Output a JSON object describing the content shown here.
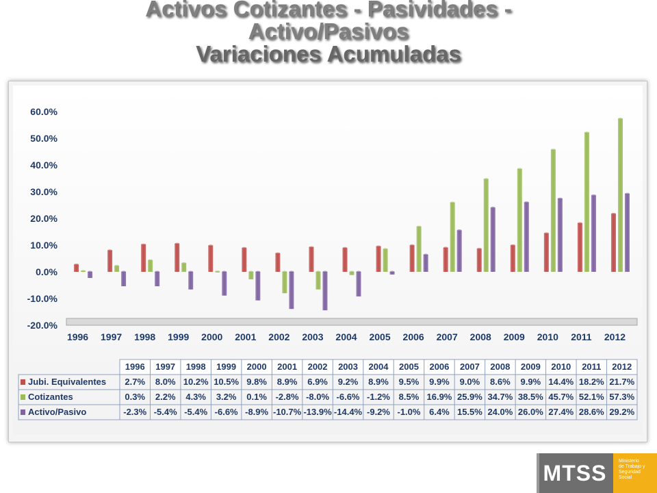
{
  "title": {
    "line1": "Activos Cotizantes - Pasividades -",
    "line2": "Activo/Pasivos",
    "line3": "Variaciones Acumuladas"
  },
  "chart_data": {
    "type": "bar",
    "title": "",
    "xlabel": "",
    "ylabel": "",
    "ylim": [
      -20,
      60
    ],
    "yticks": [
      "60.0%",
      "50.0%",
      "40.0%",
      "30.0%",
      "20.0%",
      "10.0%",
      "0.0%",
      "-10.0%",
      "-20.0%"
    ],
    "categories": [
      "1996",
      "1997",
      "1998",
      "1999",
      "2000",
      "2001",
      "2002",
      "2003",
      "2004",
      "2005",
      "2006",
      "2007",
      "2008",
      "2009",
      "2010",
      "2011",
      "2012"
    ],
    "series": [
      {
        "name": "Jubi. Equivalentes",
        "color": "#c0504d",
        "values": [
          2.7,
          8.0,
          10.2,
          10.5,
          9.8,
          8.9,
          6.9,
          9.2,
          8.9,
          9.5,
          9.9,
          9.0,
          8.6,
          9.9,
          14.4,
          18.2,
          21.7
        ],
        "labels": [
          "2.7%",
          "8.0%",
          "10.2%",
          "10.5%",
          "9.8%",
          "8.9%",
          "6.9%",
          "9.2%",
          "8.9%",
          "9.5%",
          "9.9%",
          "9.0%",
          "8.6%",
          "9.9%",
          "14.4%",
          "18.2%",
          "21.7%"
        ]
      },
      {
        "name": "Cotizantes",
        "color": "#9bbb59",
        "values": [
          0.3,
          2.2,
          4.3,
          3.2,
          0.1,
          -2.8,
          -8.0,
          -6.6,
          -1.2,
          8.5,
          16.9,
          25.9,
          34.7,
          38.5,
          45.7,
          52.1,
          57.3
        ],
        "labels": [
          "0.3%",
          "2.2%",
          "4.3%",
          "3.2%",
          "0.1%",
          "-2.8%",
          "-8.0%",
          "-6.6%",
          "-1.2%",
          "8.5%",
          "16.9%",
          "25.9%",
          "34.7%",
          "38.5%",
          "45.7%",
          "52.1%",
          "57.3%"
        ]
      },
      {
        "name": "Activo/Pasivo",
        "color": "#8064a2",
        "values": [
          -2.3,
          -5.4,
          -5.4,
          -6.6,
          -8.9,
          -10.7,
          -13.9,
          -14.4,
          -9.2,
          -1.0,
          6.4,
          15.5,
          24.0,
          26.0,
          27.4,
          28.6,
          29.2
        ],
        "labels": [
          "-2.3%",
          "-5.4%",
          "-5.4%",
          "-6.6%",
          "-8.9%",
          "-10.7%",
          "-13.9%",
          "-14.4%",
          "-9.2%",
          "-1.0%",
          "6.4%",
          "15.5%",
          "24.0%",
          "26.0%",
          "27.4%",
          "28.6%",
          "29.2%"
        ]
      }
    ],
    "grid": false,
    "legend": "data-table"
  },
  "logo": {
    "text": "MTSS",
    "subtitle_lines": [
      "Ministerio",
      "de Trabajo y",
      "Seguridad",
      "Social"
    ],
    "colors": {
      "dark": "#6e6e6e",
      "accent": "#f3b117"
    }
  }
}
